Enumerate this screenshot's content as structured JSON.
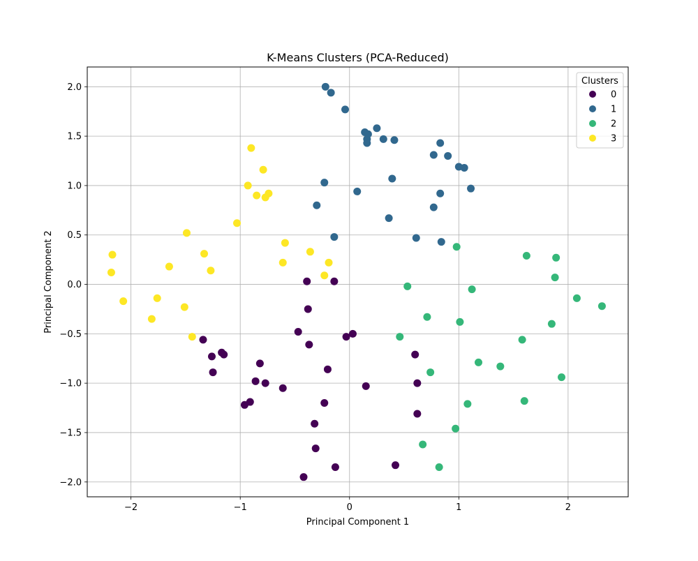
{
  "chart_data": {
    "type": "scatter",
    "title": "K-Means Clusters (PCA-Reduced)",
    "xlabel": "Principal Component 1",
    "ylabel": "Principal Component 2",
    "xlim": [
      -2.4,
      2.55
    ],
    "ylim": [
      -2.15,
      2.2
    ],
    "x_ticks": [
      -2,
      -1,
      0,
      1,
      2
    ],
    "y_ticks": [
      -2.0,
      -1.5,
      -1.0,
      -0.5,
      0.0,
      0.5,
      1.0,
      1.5,
      2.0
    ],
    "grid": true,
    "legend": {
      "title": "Clusters",
      "position": "top-right"
    },
    "series": [
      {
        "name": "0",
        "color": "#440154",
        "points": [
          [
            -0.39,
            0.03
          ],
          [
            -0.14,
            0.03
          ],
          [
            -0.38,
            -0.25
          ],
          [
            -0.47,
            -0.48
          ],
          [
            -0.37,
            -0.61
          ],
          [
            0.03,
            -0.5
          ],
          [
            -0.03,
            -0.53
          ],
          [
            -1.34,
            -0.56
          ],
          [
            -1.26,
            -0.73
          ],
          [
            -1.17,
            -0.69
          ],
          [
            -1.15,
            -0.71
          ],
          [
            -1.25,
            -0.89
          ],
          [
            -0.82,
            -0.8
          ],
          [
            -0.86,
            -0.98
          ],
          [
            -0.77,
            -1.0
          ],
          [
            -0.61,
            -1.05
          ],
          [
            -0.2,
            -0.86
          ],
          [
            -0.96,
            -1.22
          ],
          [
            -0.91,
            -1.19
          ],
          [
            -0.23,
            -1.2
          ],
          [
            0.15,
            -1.03
          ],
          [
            0.6,
            -0.71
          ],
          [
            0.62,
            -1.0
          ],
          [
            0.62,
            -1.31
          ],
          [
            -0.32,
            -1.41
          ],
          [
            -0.31,
            -1.66
          ],
          [
            -0.13,
            -1.85
          ],
          [
            -0.42,
            -1.95
          ],
          [
            0.42,
            -1.83
          ]
        ]
      },
      {
        "name": "1",
        "color": "#31688e",
        "points": [
          [
            -0.22,
            2.0
          ],
          [
            -0.17,
            1.94
          ],
          [
            -0.04,
            1.77
          ],
          [
            0.14,
            1.54
          ],
          [
            0.17,
            1.52
          ],
          [
            0.25,
            1.58
          ],
          [
            0.16,
            1.47
          ],
          [
            0.31,
            1.47
          ],
          [
            0.41,
            1.46
          ],
          [
            0.16,
            1.43
          ],
          [
            0.83,
            1.43
          ],
          [
            0.77,
            1.31
          ],
          [
            0.9,
            1.3
          ],
          [
            1.0,
            1.19
          ],
          [
            1.05,
            1.18
          ],
          [
            1.11,
            0.97
          ],
          [
            -0.23,
            1.03
          ],
          [
            0.39,
            1.07
          ],
          [
            0.07,
            0.94
          ],
          [
            0.83,
            0.92
          ],
          [
            -0.3,
            0.8
          ],
          [
            0.77,
            0.78
          ],
          [
            0.36,
            0.67
          ],
          [
            -0.14,
            0.48
          ],
          [
            0.61,
            0.47
          ],
          [
            0.84,
            0.43
          ]
        ]
      },
      {
        "name": "2",
        "color": "#35b779",
        "points": [
          [
            0.98,
            0.38
          ],
          [
            1.62,
            0.29
          ],
          [
            1.89,
            0.27
          ],
          [
            1.88,
            0.07
          ],
          [
            0.53,
            -0.02
          ],
          [
            1.12,
            -0.05
          ],
          [
            2.08,
            -0.14
          ],
          [
            2.31,
            -0.22
          ],
          [
            0.71,
            -0.33
          ],
          [
            1.01,
            -0.38
          ],
          [
            1.85,
            -0.4
          ],
          [
            0.46,
            -0.53
          ],
          [
            1.58,
            -0.56
          ],
          [
            1.18,
            -0.79
          ],
          [
            1.38,
            -0.83
          ],
          [
            0.74,
            -0.89
          ],
          [
            1.94,
            -0.94
          ],
          [
            1.6,
            -1.18
          ],
          [
            1.08,
            -1.21
          ],
          [
            0.97,
            -1.46
          ],
          [
            0.67,
            -1.62
          ],
          [
            0.82,
            -1.85
          ]
        ]
      },
      {
        "name": "3",
        "color": "#fde725",
        "points": [
          [
            -0.9,
            1.38
          ],
          [
            -0.79,
            1.16
          ],
          [
            -0.93,
            1.0
          ],
          [
            -0.85,
            0.9
          ],
          [
            -0.74,
            0.92
          ],
          [
            -0.77,
            0.88
          ],
          [
            -1.03,
            0.62
          ],
          [
            -1.49,
            0.52
          ],
          [
            -0.59,
            0.42
          ],
          [
            -1.33,
            0.31
          ],
          [
            -0.36,
            0.33
          ],
          [
            -2.17,
            0.3
          ],
          [
            -1.65,
            0.18
          ],
          [
            -0.61,
            0.22
          ],
          [
            -0.19,
            0.22
          ],
          [
            -1.27,
            0.14
          ],
          [
            -2.18,
            0.12
          ],
          [
            -0.23,
            0.09
          ],
          [
            -2.07,
            -0.17
          ],
          [
            -1.76,
            -0.14
          ],
          [
            -1.51,
            -0.23
          ],
          [
            -1.81,
            -0.35
          ],
          [
            -1.44,
            -0.53
          ]
        ]
      }
    ]
  }
}
